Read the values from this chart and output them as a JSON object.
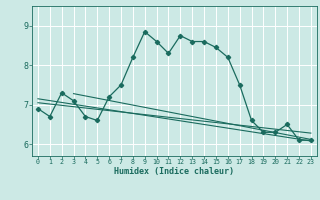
{
  "title": "",
  "xlabel": "Humidex (Indice chaleur)",
  "ylabel": "",
  "bg_color": "#cce9e5",
  "grid_color": "#ffffff",
  "line_color": "#1a6b5e",
  "xlim": [
    -0.5,
    23.5
  ],
  "ylim": [
    5.7,
    9.5
  ],
  "yticks": [
    6,
    7,
    8,
    9
  ],
  "xticks": [
    0,
    1,
    2,
    3,
    4,
    5,
    6,
    7,
    8,
    9,
    10,
    11,
    12,
    13,
    14,
    15,
    16,
    17,
    18,
    19,
    20,
    21,
    22,
    23
  ],
  "series_main": {
    "x": [
      0,
      1,
      2,
      3,
      4,
      5,
      6,
      7,
      8,
      9,
      10,
      11,
      12,
      13,
      14,
      15,
      16,
      17,
      18,
      19,
      20,
      21,
      22,
      23
    ],
    "y": [
      6.9,
      6.7,
      7.3,
      7.1,
      6.7,
      6.6,
      7.2,
      7.5,
      8.2,
      8.85,
      8.6,
      8.3,
      8.75,
      8.6,
      8.6,
      8.45,
      8.2,
      7.5,
      6.6,
      6.3,
      6.3,
      6.5,
      6.1,
      6.1
    ]
  },
  "trend_lines": [
    {
      "x": [
        0,
        23
      ],
      "y": [
        7.05,
        6.28
      ]
    },
    {
      "x": [
        0,
        23
      ],
      "y": [
        7.15,
        6.08
      ]
    },
    {
      "x": [
        3,
        23
      ],
      "y": [
        7.28,
        6.12
      ]
    }
  ]
}
